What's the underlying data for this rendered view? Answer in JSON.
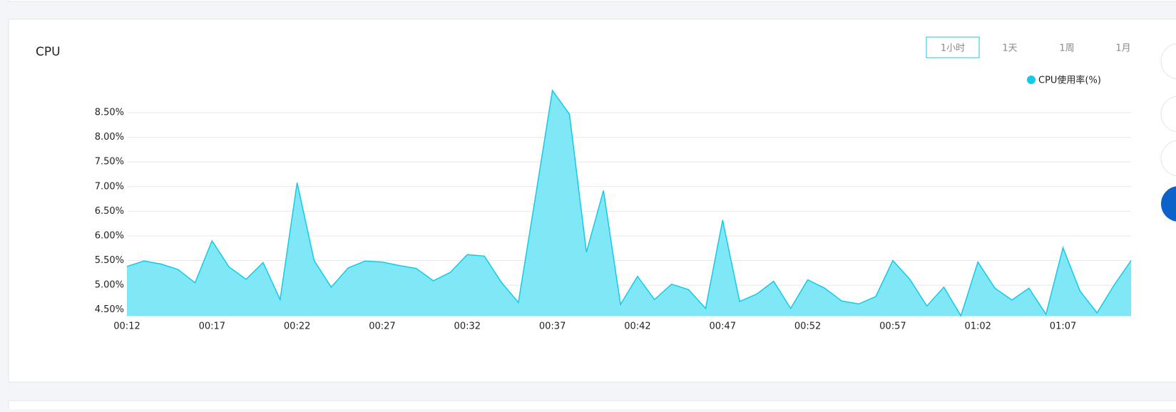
{
  "tabs": [
    "1小时",
    "1天",
    "1周",
    "1月"
  ],
  "chart_data": {
    "type": "area",
    "title": "CPU",
    "categories": [
      "00:12",
      null,
      null,
      null,
      null,
      "00:17",
      null,
      null,
      null,
      null,
      "00:22",
      null,
      null,
      null,
      null,
      "00:27",
      null,
      null,
      null,
      null,
      "00:32",
      null,
      null,
      null,
      null,
      "00:37",
      null,
      null,
      null,
      null,
      "00:42",
      null,
      null,
      null,
      null,
      "00:47",
      null,
      null,
      null,
      null,
      "00:52",
      null,
      null,
      null,
      null,
      "00:57",
      null,
      null,
      null,
      null,
      "01:02",
      null,
      null,
      null,
      null,
      "01:07",
      null,
      null,
      null,
      null
    ],
    "series": [
      {
        "name": "CPU使用率(%)",
        "color": "#11cbe8",
        "fill": "#80e7f7",
        "values": [
          5.38,
          5.49,
          5.43,
          5.32,
          5.05,
          5.9,
          5.37,
          5.12,
          5.46,
          4.71,
          7.08,
          5.5,
          4.96,
          5.35,
          5.49,
          5.47,
          5.4,
          5.34,
          5.09,
          5.26,
          5.62,
          5.59,
          5.06,
          4.65,
          6.78,
          8.95,
          8.47,
          5.67,
          6.92,
          4.61,
          5.18,
          4.71,
          5.02,
          4.91,
          4.53,
          6.32,
          4.67,
          4.82,
          5.08,
          4.53,
          5.11,
          4.94,
          4.68,
          4.62,
          4.77,
          5.5,
          5.12,
          4.58,
          4.96,
          4.38,
          5.47,
          4.94,
          4.7,
          4.94,
          4.41,
          5.76,
          4.88,
          4.44,
          5.0,
          5.5
        ]
      }
    ],
    "ylim": [
      4.38,
      9.0
    ],
    "yticks": [
      {
        "value": 4.5,
        "label": "4.50%"
      },
      {
        "value": 5.0,
        "label": "5.00%"
      },
      {
        "value": 5.5,
        "label": "5.50%"
      },
      {
        "value": 6.0,
        "label": "6.00%"
      },
      {
        "value": 6.5,
        "label": "6.50%"
      },
      {
        "value": 7.0,
        "label": "7.00%"
      },
      {
        "value": 7.5,
        "label": "7.50%"
      },
      {
        "value": 8.0,
        "label": "8.00%"
      },
      {
        "value": 8.5,
        "label": "8.50%"
      }
    ],
    "grid": true,
    "legend": "top-right"
  }
}
